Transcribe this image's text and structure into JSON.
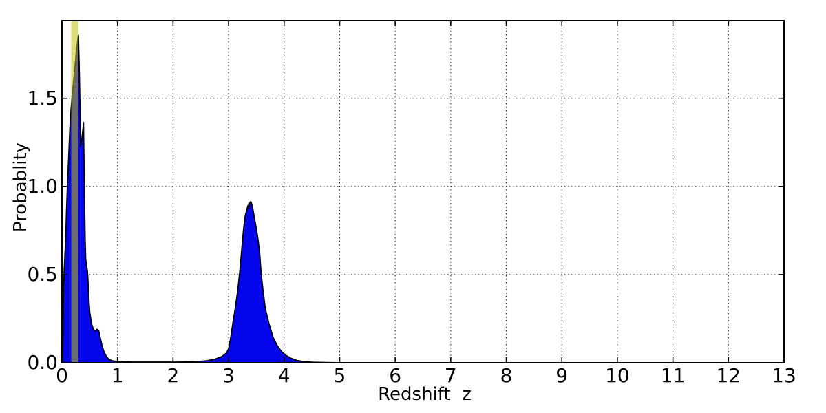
{
  "figure": {
    "background": "#ffffff",
    "frame_color": "#000000"
  },
  "chart_data": {
    "type": "area",
    "title": "",
    "xlabel": "Redshift  z",
    "ylabel": "Probablity",
    "xlim": [
      0,
      13
    ],
    "ylim": [
      0,
      1.94
    ],
    "grid": {
      "on": true,
      "style": "dotted",
      "color": "#2b2b2b"
    },
    "legend": "none",
    "xticks": {
      "values": [
        0,
        1,
        2,
        3,
        4,
        5,
        6,
        7,
        8,
        9,
        10,
        11,
        12,
        13
      ],
      "labels": [
        "0",
        "1",
        "2",
        "3",
        "4",
        "5",
        "6",
        "7",
        "8",
        "9",
        "10",
        "11",
        "12",
        "13"
      ]
    },
    "yticks": {
      "values": [
        0.0,
        0.5,
        1.0,
        1.5
      ],
      "labels": [
        "0.0",
        "0.5",
        "1.0",
        "1.5"
      ]
    },
    "series": [
      {
        "name": "redshift-probability-pdf",
        "fill_color": "#0505ee",
        "edge_color": "#000000",
        "peaks": [
          {
            "z": 0.3,
            "p": 1.86
          },
          {
            "z": 0.39,
            "p": 1.37
          },
          {
            "z": 3.4,
            "p": 0.91
          }
        ],
        "points": [
          [
            0.01,
            0.0
          ],
          [
            0.02,
            0.18
          ],
          [
            0.03,
            0.42
          ],
          [
            0.04,
            0.52
          ],
          [
            0.055,
            0.62
          ],
          [
            0.067,
            0.7
          ],
          [
            0.08,
            0.85
          ],
          [
            0.1,
            1.02
          ],
          [
            0.125,
            1.2
          ],
          [
            0.15,
            1.38
          ],
          [
            0.18,
            1.5
          ],
          [
            0.22,
            1.63
          ],
          [
            0.26,
            1.77
          ],
          [
            0.295,
            1.857
          ],
          [
            0.31,
            1.7
          ],
          [
            0.325,
            1.45
          ],
          [
            0.337,
            1.227
          ],
          [
            0.35,
            1.25
          ],
          [
            0.365,
            1.29
          ],
          [
            0.378,
            1.325
          ],
          [
            0.388,
            1.363
          ],
          [
            0.398,
            1.12
          ],
          [
            0.408,
            0.9
          ],
          [
            0.418,
            0.7
          ],
          [
            0.428,
            0.59
          ],
          [
            0.44,
            0.555
          ],
          [
            0.458,
            0.52
          ],
          [
            0.468,
            0.47
          ],
          [
            0.48,
            0.38
          ],
          [
            0.5,
            0.29
          ],
          [
            0.53,
            0.225
          ],
          [
            0.565,
            0.19
          ],
          [
            0.6,
            0.178
          ],
          [
            0.63,
            0.19
          ],
          [
            0.66,
            0.183
          ],
          [
            0.69,
            0.14
          ],
          [
            0.72,
            0.1
          ],
          [
            0.76,
            0.06
          ],
          [
            0.8,
            0.035
          ],
          [
            0.85,
            0.018
          ],
          [
            0.92,
            0.01
          ],
          [
            1.0,
            0.007
          ],
          [
            1.1,
            0.005
          ],
          [
            1.3,
            0.004
          ],
          [
            1.7,
            0.004
          ],
          [
            2.1,
            0.004
          ],
          [
            2.4,
            0.006
          ],
          [
            2.6,
            0.011
          ],
          [
            2.75,
            0.02
          ],
          [
            2.88,
            0.035
          ],
          [
            2.96,
            0.055
          ],
          [
            3.0,
            0.08
          ],
          [
            3.04,
            0.145
          ],
          [
            3.08,
            0.23
          ],
          [
            3.12,
            0.31
          ],
          [
            3.16,
            0.4
          ],
          [
            3.2,
            0.51
          ],
          [
            3.24,
            0.65
          ],
          [
            3.27,
            0.76
          ],
          [
            3.3,
            0.835
          ],
          [
            3.33,
            0.868
          ],
          [
            3.345,
            0.89
          ],
          [
            3.357,
            0.872
          ],
          [
            3.38,
            0.906
          ],
          [
            3.4,
            0.914
          ],
          [
            3.425,
            0.893
          ],
          [
            3.46,
            0.83
          ],
          [
            3.5,
            0.76
          ],
          [
            3.53,
            0.7
          ],
          [
            3.56,
            0.62
          ],
          [
            3.585,
            0.51
          ],
          [
            3.62,
            0.41
          ],
          [
            3.66,
            0.31
          ],
          [
            3.72,
            0.23
          ],
          [
            3.8,
            0.145
          ],
          [
            3.87,
            0.1
          ],
          [
            3.95,
            0.065
          ],
          [
            4.03,
            0.042
          ],
          [
            4.12,
            0.026
          ],
          [
            4.22,
            0.014
          ],
          [
            4.35,
            0.007
          ],
          [
            4.5,
            0.003
          ],
          [
            4.75,
            0.001
          ],
          [
            5.0,
            0.0
          ],
          [
            13.0,
            0.0
          ]
        ]
      }
    ],
    "marker_band": {
      "name": "vertical-highlight-band",
      "z_from": 0.167,
      "z_to": 0.295,
      "color": "#bfbf0a",
      "opacity": 0.55
    }
  }
}
